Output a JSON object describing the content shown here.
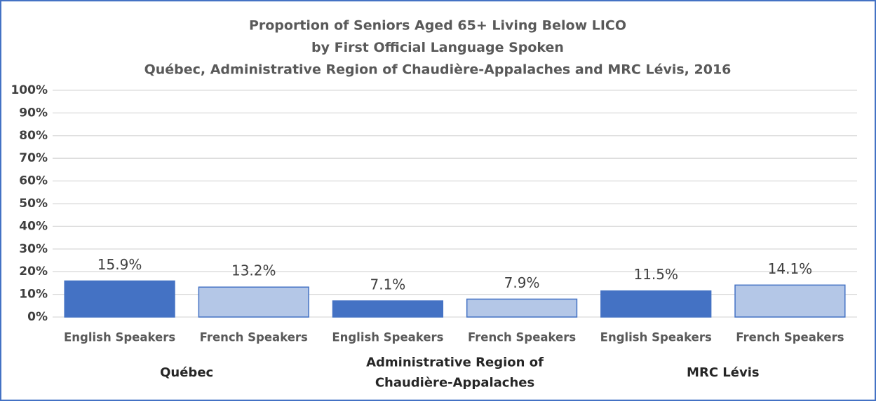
{
  "chart_data": {
    "type": "bar",
    "title": [
      "Proportion of Seniors Aged 65+ Living Below LICO",
      "by First Official Language Spoken",
      "Québec, Administrative Region of Chaudière-Appalaches and MRC Lévis, 2016"
    ],
    "groups": [
      {
        "name": [
          "Québec"
        ],
        "categories": [
          "English Speakers",
          "French Speakers"
        ],
        "values": [
          15.9,
          13.2
        ],
        "value_labels": [
          "15.9%",
          "13.2%"
        ]
      },
      {
        "name": [
          "Administrative Region of",
          "Chaudière-Appalaches"
        ],
        "categories": [
          "English Speakers",
          "French Speakers"
        ],
        "values": [
          7.1,
          7.9
        ],
        "value_labels": [
          "7.1%",
          "7.9%"
        ]
      },
      {
        "name": [
          "MRC Lévis"
        ],
        "categories": [
          "English Speakers",
          "French Speakers"
        ],
        "values": [
          11.5,
          14.1
        ],
        "value_labels": [
          "11.5%",
          "14.1%"
        ]
      }
    ],
    "colors": [
      "#4472c4",
      "#b4c7e7"
    ],
    "ylim": [
      0,
      100
    ],
    "yticks": [
      {
        "value": 0,
        "label": "0%"
      },
      {
        "value": 10,
        "label": "10%"
      },
      {
        "value": 20,
        "label": "20%"
      },
      {
        "value": 30,
        "label": "30%"
      },
      {
        "value": 40,
        "label": "40%"
      },
      {
        "value": 50,
        "label": "50%"
      },
      {
        "value": 60,
        "label": "60%"
      },
      {
        "value": 70,
        "label": "70%"
      },
      {
        "value": 80,
        "label": "80%"
      },
      {
        "value": 90,
        "label": "90%"
      },
      {
        "value": 100,
        "label": "100%"
      }
    ],
    "grid": true
  }
}
